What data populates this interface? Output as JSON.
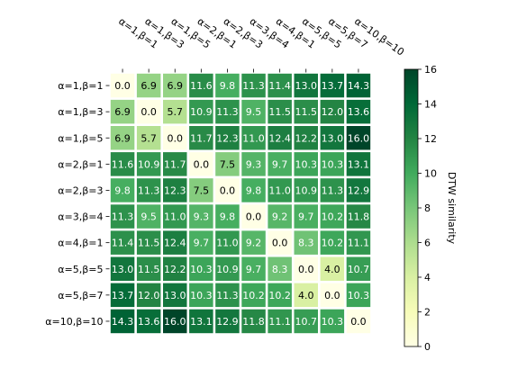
{
  "chart_data": {
    "type": "heatmap",
    "title": "",
    "x_labels": [
      "α=1,β=1",
      "α=1,β=3",
      "α=1,β=5",
      "α=2,β=1",
      "α=2,β=3",
      "α=3,β=4",
      "α=4,β=1",
      "α=5,β=5",
      "α=5,β=7",
      "α=10,β=10"
    ],
    "y_labels": [
      "α=1,β=1",
      "α=1,β=3",
      "α=1,β=5",
      "α=2,β=1",
      "α=2,β=3",
      "α=3,β=4",
      "α=4,β=1",
      "α=5,β=5",
      "α=5,β=7",
      "α=10,β=10"
    ],
    "values": [
      [
        0.0,
        6.9,
        6.9,
        11.6,
        9.8,
        11.3,
        11.4,
        13.0,
        13.7,
        14.3
      ],
      [
        6.9,
        0.0,
        5.7,
        10.9,
        11.3,
        9.5,
        11.5,
        11.5,
        12.0,
        13.6
      ],
      [
        6.9,
        5.7,
        0.0,
        11.7,
        12.3,
        11.0,
        12.4,
        12.2,
        13.0,
        16.0
      ],
      [
        11.6,
        10.9,
        11.7,
        0.0,
        7.5,
        9.3,
        9.7,
        10.3,
        10.3,
        13.1
      ],
      [
        9.8,
        11.3,
        12.3,
        7.5,
        0.0,
        9.8,
        11.0,
        10.9,
        11.3,
        12.9
      ],
      [
        11.3,
        9.5,
        11.0,
        9.3,
        9.8,
        0.0,
        9.2,
        9.7,
        10.2,
        11.8
      ],
      [
        11.4,
        11.5,
        12.4,
        9.7,
        11.0,
        9.2,
        0.0,
        8.3,
        10.2,
        11.1
      ],
      [
        13.0,
        11.5,
        12.2,
        10.3,
        10.9,
        9.7,
        8.3,
        0.0,
        4.0,
        10.7
      ],
      [
        13.7,
        12.0,
        13.0,
        10.3,
        11.3,
        10.2,
        10.2,
        4.0,
        0.0,
        10.3
      ],
      [
        14.3,
        13.6,
        16.0,
        13.1,
        12.9,
        11.8,
        11.1,
        10.7,
        10.3,
        0.0
      ]
    ],
    "colormap": "YlGn",
    "colorbar": {
      "label": "DTW similarity",
      "range": [
        0,
        16
      ],
      "ticks": [
        0,
        2,
        4,
        6,
        8,
        10,
        12,
        14,
        16
      ]
    },
    "xlabel": "",
    "ylabel": ""
  }
}
